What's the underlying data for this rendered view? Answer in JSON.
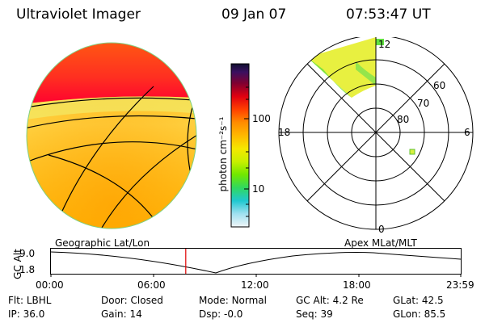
{
  "header": {
    "title": "Ultraviolet Imager",
    "date": "09 Jan 07",
    "time": "07:53:47 UT"
  },
  "colorbar": {
    "unit_label": "photon cm⁻²s⁻¹",
    "tick_labels": [
      "100",
      "10"
    ],
    "colors": [
      "#101030",
      "#3a1060",
      "#800030",
      "#c00010",
      "#ff0020",
      "#ff3000",
      "#ff6000",
      "#ff8c00",
      "#ffb000",
      "#ffd000",
      "#f5e800",
      "#d8f000",
      "#a8f000",
      "#70e800",
      "#30d830",
      "#20c8a0",
      "#20c8d8",
      "#70d8f0",
      "#b8e8f8",
      "#e8f4f8"
    ]
  },
  "left_panel": {
    "caption": "Geographic Lat/Lon"
  },
  "right_panel": {
    "caption": "Apex MLat/MLT",
    "mlt_labels": {
      "top": "12",
      "bottom": "0",
      "left": "18",
      "right": "6"
    },
    "lat_labels": [
      "60",
      "70",
      "80"
    ]
  },
  "altitude_strip": {
    "ylabel": "GC Alt",
    "y_ticks": [
      "9.0",
      "1.8"
    ],
    "x_ticks": [
      "00:00",
      "06:00",
      "12:00",
      "18:00",
      "23:59"
    ],
    "current_time_fraction": 0.329
  },
  "info": {
    "flt": {
      "label": "Flt:",
      "value": "LBHL"
    },
    "door": {
      "label": "Door:",
      "value": "Closed"
    },
    "mode": {
      "label": "Mode:",
      "value": "Normal"
    },
    "gc_alt": {
      "label": "GC Alt:",
      "value": "4.2 Re"
    },
    "glat": {
      "label": "GLat:",
      "value": "42.5"
    },
    "ip": {
      "label": "IP:",
      "value": "36.0"
    },
    "gain": {
      "label": "Gain:",
      "value": "14"
    },
    "dsp": {
      "label": "Dsp:",
      "value": "-0.0"
    },
    "seq": {
      "label": "Seq:",
      "value": "39"
    },
    "glon": {
      "label": "GLon:",
      "value": "85.5"
    }
  }
}
